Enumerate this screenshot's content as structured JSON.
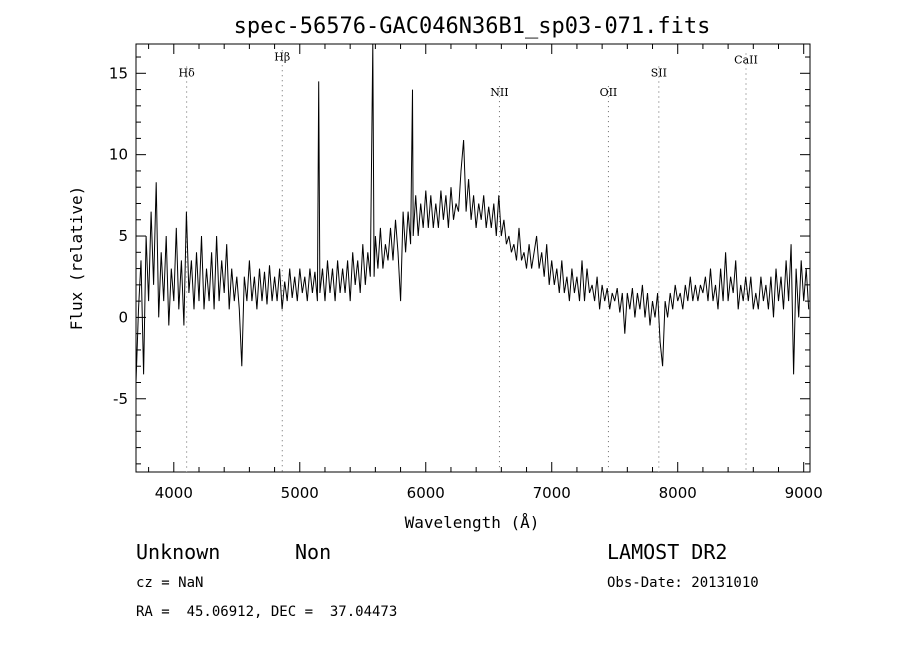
{
  "chart_data": {
    "type": "line",
    "title": "spec-56576-GAC046N36B1_sp03-071.fits",
    "xlabel": "Wavelength (Å)",
    "ylabel": "Flux (relative)",
    "xlim": [
      3700,
      9050
    ],
    "ylim": [
      -9.5,
      16.8
    ],
    "xticks": [
      4000,
      5000,
      6000,
      7000,
      8000,
      9000
    ],
    "yticks": [
      -5,
      0,
      5,
      10,
      15
    ],
    "grid": false,
    "spectral_lines": [
      {
        "name": "Hδ",
        "wavelength": 4102,
        "label_y": 14.8
      },
      {
        "name": "Hβ",
        "wavelength": 4861,
        "label_y": 15.8
      },
      {
        "name": "NII",
        "wavelength": 6585,
        "label_y": 13.6
      },
      {
        "name": "OII",
        "wavelength": 7450,
        "label_y": 13.6
      },
      {
        "name": "SII",
        "wavelength": 7850,
        "label_y": 14.8
      },
      {
        "name": "CaII",
        "wavelength": 8542,
        "label_y": 15.6
      }
    ],
    "series": [
      {
        "points": [
          [
            3700,
            -4.0
          ],
          [
            3720,
            0.5
          ],
          [
            3740,
            3.5
          ],
          [
            3760,
            -3.5
          ],
          [
            3780,
            5.0
          ],
          [
            3800,
            1.0
          ],
          [
            3820,
            6.5
          ],
          [
            3840,
            2.0
          ],
          [
            3860,
            8.3
          ],
          [
            3880,
            0.0
          ],
          [
            3900,
            4.0
          ],
          [
            3920,
            1.0
          ],
          [
            3940,
            5.0
          ],
          [
            3960,
            -0.5
          ],
          [
            3980,
            3.0
          ],
          [
            4000,
            1.0
          ],
          [
            4020,
            5.5
          ],
          [
            4040,
            0.5
          ],
          [
            4060,
            3.5
          ],
          [
            4080,
            -0.5
          ],
          [
            4100,
            6.5
          ],
          [
            4120,
            1.5
          ],
          [
            4140,
            3.5
          ],
          [
            4160,
            0.5
          ],
          [
            4180,
            4.0
          ],
          [
            4200,
            1.0
          ],
          [
            4220,
            5.0
          ],
          [
            4240,
            0.5
          ],
          [
            4260,
            3.0
          ],
          [
            4280,
            1.0
          ],
          [
            4300,
            4.0
          ],
          [
            4320,
            0.5
          ],
          [
            4340,
            5.0
          ],
          [
            4360,
            1.0
          ],
          [
            4380,
            3.5
          ],
          [
            4400,
            1.5
          ],
          [
            4420,
            4.5
          ],
          [
            4440,
            0.5
          ],
          [
            4460,
            3.0
          ],
          [
            4480,
            1.0
          ],
          [
            4500,
            2.5
          ],
          [
            4520,
            0.5
          ],
          [
            4540,
            -3.0
          ],
          [
            4560,
            2.5
          ],
          [
            4580,
            1.0
          ],
          [
            4600,
            3.5
          ],
          [
            4620,
            1.0
          ],
          [
            4640,
            2.5
          ],
          [
            4660,
            0.5
          ],
          [
            4680,
            3.0
          ],
          [
            4700,
            1.0
          ],
          [
            4720,
            2.8
          ],
          [
            4740,
            0.8
          ],
          [
            4760,
            3.2
          ],
          [
            4780,
            1.0
          ],
          [
            4800,
            2.5
          ],
          [
            4820,
            1.0
          ],
          [
            4840,
            3.0
          ],
          [
            4860,
            0.5
          ],
          [
            4880,
            2.2
          ],
          [
            4900,
            1.0
          ],
          [
            4920,
            3.0
          ],
          [
            4940,
            1.2
          ],
          [
            4960,
            2.5
          ],
          [
            4980,
            1.0
          ],
          [
            5000,
            3.0
          ],
          [
            5020,
            1.5
          ],
          [
            5040,
            2.5
          ],
          [
            5060,
            1.0
          ],
          [
            5080,
            3.0
          ],
          [
            5100,
            1.5
          ],
          [
            5120,
            2.8
          ],
          [
            5140,
            1.0
          ],
          [
            5150,
            14.5
          ],
          [
            5160,
            1.5
          ],
          [
            5180,
            3.0
          ],
          [
            5200,
            1.0
          ],
          [
            5220,
            3.5
          ],
          [
            5240,
            1.5
          ],
          [
            5260,
            3.0
          ],
          [
            5280,
            1.0
          ],
          [
            5300,
            3.5
          ],
          [
            5320,
            1.5
          ],
          [
            5340,
            3.0
          ],
          [
            5360,
            1.5
          ],
          [
            5380,
            3.5
          ],
          [
            5400,
            1.0
          ],
          [
            5420,
            4.0
          ],
          [
            5440,
            2.0
          ],
          [
            5460,
            3.5
          ],
          [
            5480,
            1.5
          ],
          [
            5500,
            4.5
          ],
          [
            5520,
            2.0
          ],
          [
            5540,
            4.0
          ],
          [
            5560,
            2.5
          ],
          [
            5580,
            16.8
          ],
          [
            5590,
            2.5
          ],
          [
            5600,
            5.0
          ],
          [
            5620,
            3.0
          ],
          [
            5640,
            5.5
          ],
          [
            5660,
            3.0
          ],
          [
            5680,
            4.5
          ],
          [
            5700,
            3.5
          ],
          [
            5720,
            5.5
          ],
          [
            5740,
            3.5
          ],
          [
            5760,
            6.0
          ],
          [
            5780,
            4.0
          ],
          [
            5800,
            1.0
          ],
          [
            5820,
            6.5
          ],
          [
            5840,
            4.0
          ],
          [
            5860,
            6.5
          ],
          [
            5880,
            4.5
          ],
          [
            5895,
            14.0
          ],
          [
            5900,
            5.0
          ],
          [
            5920,
            7.5
          ],
          [
            5940,
            5.0
          ],
          [
            5960,
            7.0
          ],
          [
            5980,
            5.5
          ],
          [
            6000,
            7.8
          ],
          [
            6020,
            5.5
          ],
          [
            6040,
            7.5
          ],
          [
            6060,
            5.5
          ],
          [
            6080,
            7.0
          ],
          [
            6100,
            5.5
          ],
          [
            6120,
            7.8
          ],
          [
            6140,
            6.0
          ],
          [
            6160,
            7.5
          ],
          [
            6180,
            5.5
          ],
          [
            6200,
            8.0
          ],
          [
            6220,
            6.0
          ],
          [
            6240,
            7.0
          ],
          [
            6260,
            6.5
          ],
          [
            6280,
            9.0
          ],
          [
            6300,
            10.9
          ],
          [
            6320,
            6.5
          ],
          [
            6340,
            8.5
          ],
          [
            6360,
            6.0
          ],
          [
            6380,
            7.5
          ],
          [
            6400,
            5.5
          ],
          [
            6420,
            7.0
          ],
          [
            6440,
            6.0
          ],
          [
            6460,
            7.5
          ],
          [
            6480,
            5.5
          ],
          [
            6500,
            6.8
          ],
          [
            6520,
            5.5
          ],
          [
            6540,
            7.0
          ],
          [
            6560,
            5.0
          ],
          [
            6580,
            7.5
          ],
          [
            6600,
            5.0
          ],
          [
            6620,
            6.0
          ],
          [
            6640,
            4.5
          ],
          [
            6660,
            5.0
          ],
          [
            6680,
            4.0
          ],
          [
            6700,
            4.5
          ],
          [
            6720,
            3.5
          ],
          [
            6740,
            5.5
          ],
          [
            6760,
            3.5
          ],
          [
            6780,
            4.0
          ],
          [
            6800,
            3.0
          ],
          [
            6820,
            4.5
          ],
          [
            6840,
            3.0
          ],
          [
            6860,
            4.0
          ],
          [
            6880,
            5.0
          ],
          [
            6900,
            3.0
          ],
          [
            6920,
            4.0
          ],
          [
            6940,
            2.5
          ],
          [
            6960,
            4.5
          ],
          [
            6980,
            2.0
          ],
          [
            7000,
            3.5
          ],
          [
            7020,
            2.0
          ],
          [
            7040,
            3.0
          ],
          [
            7060,
            1.5
          ],
          [
            7080,
            3.5
          ],
          [
            7100,
            1.5
          ],
          [
            7120,
            2.5
          ],
          [
            7140,
            1.0
          ],
          [
            7160,
            3.0
          ],
          [
            7180,
            1.5
          ],
          [
            7200,
            2.5
          ],
          [
            7220,
            1.0
          ],
          [
            7240,
            3.5
          ],
          [
            7260,
            1.0
          ],
          [
            7280,
            3.0
          ],
          [
            7300,
            1.5
          ],
          [
            7320,
            2.0
          ],
          [
            7340,
            1.0
          ],
          [
            7360,
            2.5
          ],
          [
            7380,
            0.5
          ],
          [
            7400,
            2.0
          ],
          [
            7420,
            1.0
          ],
          [
            7440,
            1.8
          ],
          [
            7460,
            0.5
          ],
          [
            7480,
            1.5
          ],
          [
            7500,
            1.0
          ],
          [
            7520,
            1.8
          ],
          [
            7540,
            0.3
          ],
          [
            7560,
            1.5
          ],
          [
            7580,
            -1.0
          ],
          [
            7600,
            1.5
          ],
          [
            7620,
            0.5
          ],
          [
            7640,
            1.8
          ],
          [
            7660,
            0.0
          ],
          [
            7680,
            1.5
          ],
          [
            7700,
            0.5
          ],
          [
            7720,
            2.0
          ],
          [
            7740,
            0.0
          ],
          [
            7760,
            1.5
          ],
          [
            7780,
            -0.5
          ],
          [
            7800,
            1.0
          ],
          [
            7820,
            0.0
          ],
          [
            7840,
            1.5
          ],
          [
            7860,
            -1.5
          ],
          [
            7880,
            -3.0
          ],
          [
            7900,
            1.0
          ],
          [
            7920,
            0.0
          ],
          [
            7940,
            1.5
          ],
          [
            7960,
            0.5
          ],
          [
            7980,
            2.0
          ],
          [
            8000,
            1.0
          ],
          [
            8020,
            1.5
          ],
          [
            8040,
            0.5
          ],
          [
            8060,
            2.0
          ],
          [
            8080,
            1.0
          ],
          [
            8100,
            2.5
          ],
          [
            8120,
            1.0
          ],
          [
            8140,
            2.0
          ],
          [
            8160,
            1.0
          ],
          [
            8180,
            2.0
          ],
          [
            8200,
            1.5
          ],
          [
            8220,
            2.5
          ],
          [
            8240,
            1.0
          ],
          [
            8260,
            3.0
          ],
          [
            8280,
            1.0
          ],
          [
            8300,
            2.0
          ],
          [
            8320,
            0.5
          ],
          [
            8340,
            3.0
          ],
          [
            8360,
            1.0
          ],
          [
            8380,
            4.0
          ],
          [
            8400,
            1.0
          ],
          [
            8420,
            2.5
          ],
          [
            8440,
            1.5
          ],
          [
            8460,
            3.5
          ],
          [
            8480,
            0.5
          ],
          [
            8500,
            2.0
          ],
          [
            8520,
            1.0
          ],
          [
            8540,
            2.5
          ],
          [
            8560,
            1.0
          ],
          [
            8580,
            2.5
          ],
          [
            8600,
            0.5
          ],
          [
            8620,
            1.5
          ],
          [
            8640,
            0.5
          ],
          [
            8660,
            2.5
          ],
          [
            8680,
            1.0
          ],
          [
            8700,
            2.0
          ],
          [
            8720,
            0.5
          ],
          [
            8740,
            2.5
          ],
          [
            8760,
            0.0
          ],
          [
            8780,
            3.0
          ],
          [
            8800,
            1.0
          ],
          [
            8820,
            2.5
          ],
          [
            8840,
            0.5
          ],
          [
            8860,
            3.5
          ],
          [
            8880,
            1.0
          ],
          [
            8900,
            4.5
          ],
          [
            8920,
            -3.5
          ],
          [
            8940,
            3.0
          ],
          [
            8960,
            0.0
          ],
          [
            8980,
            3.5
          ],
          [
            9000,
            1.0
          ],
          [
            9020,
            3.0
          ],
          [
            9040,
            0.5
          ]
        ]
      }
    ]
  },
  "info": {
    "class": "Unknown",
    "subclass": "Non",
    "cz": "cz = NaN",
    "radec": "RA =  45.06912, DEC =  37.04473",
    "survey": "LAMOST DR2",
    "obsdate": "Obs-Date: 20131010"
  }
}
